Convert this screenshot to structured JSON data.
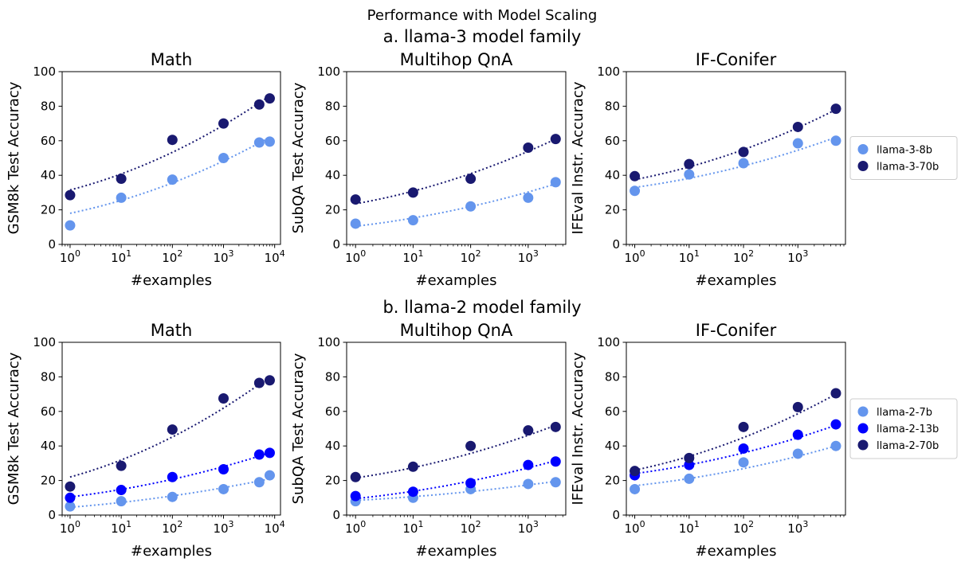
{
  "figure": {
    "suptitle": "Performance with Model Scaling",
    "row_titles": [
      "a. llama-3 model family",
      "b. llama-2 model family"
    ]
  },
  "colors": {
    "light": "#6495ED",
    "medium": "#0000FF",
    "dark": "#191970"
  },
  "chart_data": [
    {
      "type": "scatter",
      "row": 0,
      "col": 0,
      "title": "Math",
      "xlabel": "#examples",
      "ylabel": "GSM8k Test Accuracy",
      "xscale": "log",
      "xlim": [
        0.7,
        13000
      ],
      "ylim": [
        0,
        100
      ],
      "xticks": [
        1,
        10,
        100,
        1000,
        10000
      ],
      "yticks": [
        0,
        20,
        40,
        60,
        80,
        100
      ],
      "legend": "none",
      "series": [
        {
          "name": "llama-3-8b",
          "color_key": "light",
          "x": [
            1,
            10,
            100,
            1000,
            5000,
            8000
          ],
          "y": [
            11,
            27,
            37.5,
            50,
            59,
            59.5
          ],
          "trend": {
            "x": [
              1,
              8000
            ],
            "y": [
              18,
              62
            ]
          }
        },
        {
          "name": "llama-3-70b",
          "color_key": "dark",
          "x": [
            1,
            10,
            100,
            1000,
            5000,
            8000
          ],
          "y": [
            28.5,
            38,
            60.5,
            70,
            81,
            84.5
          ],
          "trend": {
            "x": [
              1,
              8000
            ],
            "y": [
              31.5,
              86
            ]
          }
        }
      ]
    },
    {
      "type": "scatter",
      "row": 0,
      "col": 1,
      "title": "Multihop QnA",
      "xlabel": "#examples",
      "ylabel": "SubQA Test Accuracy",
      "xscale": "log",
      "xlim": [
        0.7,
        4500
      ],
      "ylim": [
        0,
        100
      ],
      "xticks": [
        1,
        10,
        100,
        1000
      ],
      "yticks": [
        0,
        20,
        40,
        60,
        80,
        100
      ],
      "legend": "none",
      "series": [
        {
          "name": "llama-3-8b",
          "color_key": "light",
          "x": [
            1,
            10,
            100,
            1000,
            3000
          ],
          "y": [
            12,
            14,
            22,
            27,
            36
          ],
          "trend": {
            "x": [
              1,
              3000
            ],
            "y": [
              10.5,
              35
            ]
          }
        },
        {
          "name": "llama-3-70b",
          "color_key": "dark",
          "x": [
            1,
            10,
            100,
            1000,
            3000
          ],
          "y": [
            26,
            30,
            38,
            56,
            61
          ],
          "trend": {
            "x": [
              1,
              3000
            ],
            "y": [
              23.5,
              61
            ]
          }
        }
      ]
    },
    {
      "type": "scatter",
      "row": 0,
      "col": 2,
      "title": "IF-Conifer",
      "xlabel": "#examples",
      "ylabel": "IFEval Instr. Accuracy",
      "xscale": "log",
      "xlim": [
        0.7,
        7500
      ],
      "ylim": [
        0,
        100
      ],
      "xticks": [
        1,
        10,
        100,
        1000
      ],
      "yticks": [
        0,
        20,
        40,
        60,
        80,
        100
      ],
      "legend": "outside-right",
      "series": [
        {
          "name": "llama-3-8b",
          "color_key": "light",
          "x": [
            1,
            10,
            100,
            1000,
            5000
          ],
          "y": [
            31,
            40.5,
            47,
            58.5,
            60
          ],
          "trend": {
            "x": [
              1,
              5000
            ],
            "y": [
              33,
              62
            ]
          }
        },
        {
          "name": "llama-3-70b",
          "color_key": "dark",
          "x": [
            1,
            10,
            100,
            1000,
            5000
          ],
          "y": [
            39.5,
            46.5,
            53.5,
            68,
            78.5
          ],
          "trend": {
            "x": [
              1,
              5000
            ],
            "y": [
              37.5,
              78
            ]
          }
        }
      ]
    },
    {
      "type": "scatter",
      "row": 1,
      "col": 0,
      "title": "Math",
      "xlabel": "#examples",
      "ylabel": "GSM8k Test Accuracy",
      "xscale": "log",
      "xlim": [
        0.7,
        13000
      ],
      "ylim": [
        0,
        100
      ],
      "xticks": [
        1,
        10,
        100,
        1000,
        10000
      ],
      "yticks": [
        0,
        20,
        40,
        60,
        80,
        100
      ],
      "legend": "none",
      "series": [
        {
          "name": "llama-2-7b",
          "color_key": "light",
          "x": [
            1,
            10,
            100,
            1000,
            5000,
            8000
          ],
          "y": [
            5,
            8,
            10.5,
            15,
            19,
            23
          ],
          "trend": {
            "x": [
              1,
              8000
            ],
            "y": [
              4.5,
              21
            ]
          }
        },
        {
          "name": "llama-2-13b",
          "color_key": "medium",
          "x": [
            1,
            10,
            100,
            1000,
            5000,
            8000
          ],
          "y": [
            10,
            14.5,
            22,
            26.5,
            35,
            36
          ],
          "trend": {
            "x": [
              1,
              8000
            ],
            "y": [
              10.5,
              36
            ]
          }
        },
        {
          "name": "llama-2-70b",
          "color_key": "dark",
          "x": [
            1,
            10,
            100,
            1000,
            5000,
            8000
          ],
          "y": [
            16.5,
            28.5,
            49.5,
            67.5,
            76.5,
            78
          ],
          "trend": {
            "x": [
              1,
              8000
            ],
            "y": [
              22,
              80
            ]
          }
        }
      ]
    },
    {
      "type": "scatter",
      "row": 1,
      "col": 1,
      "title": "Multihop QnA",
      "xlabel": "#examples",
      "ylabel": "SubQA Test Accuracy",
      "xscale": "log",
      "xlim": [
        0.7,
        4500
      ],
      "ylim": [
        0,
        100
      ],
      "xticks": [
        1,
        10,
        100,
        1000
      ],
      "yticks": [
        0,
        20,
        40,
        60,
        80,
        100
      ],
      "legend": "none",
      "series": [
        {
          "name": "llama-2-7b",
          "color_key": "light",
          "x": [
            1,
            10,
            100,
            1000,
            3000
          ],
          "y": [
            8,
            10,
            15,
            18,
            19
          ],
          "trend": {
            "x": [
              1,
              3000
            ],
            "y": [
              8.5,
              19.5
            ]
          }
        },
        {
          "name": "llama-2-13b",
          "color_key": "medium",
          "x": [
            1,
            10,
            100,
            1000,
            3000
          ],
          "y": [
            11,
            13.5,
            18.5,
            29,
            31
          ],
          "trend": {
            "x": [
              1,
              3000
            ],
            "y": [
              9.5,
              31.5
            ]
          }
        },
        {
          "name": "llama-2-70b",
          "color_key": "dark",
          "x": [
            1,
            10,
            100,
            1000,
            3000
          ],
          "y": [
            22,
            28,
            40,
            49,
            51
          ],
          "trend": {
            "x": [
              1,
              3000
            ],
            "y": [
              21.5,
              52
            ]
          }
        }
      ]
    },
    {
      "type": "scatter",
      "row": 1,
      "col": 2,
      "title": "IF-Conifer",
      "xlabel": "#examples",
      "ylabel": "IFEval Instr. Accuracy",
      "xscale": "log",
      "xlim": [
        0.7,
        7500
      ],
      "ylim": [
        0,
        100
      ],
      "xticks": [
        1,
        10,
        100,
        1000
      ],
      "yticks": [
        0,
        20,
        40,
        60,
        80,
        100
      ],
      "legend": "outside-right",
      "series": [
        {
          "name": "llama-2-7b",
          "color_key": "light",
          "x": [
            1,
            10,
            100,
            1000,
            5000
          ],
          "y": [
            15,
            21,
            30.5,
            35.5,
            40
          ],
          "trend": {
            "x": [
              1,
              5000
            ],
            "y": [
              17,
              40
            ]
          }
        },
        {
          "name": "llama-2-13b",
          "color_key": "medium",
          "x": [
            1,
            10,
            100,
            1000,
            5000
          ],
          "y": [
            23,
            29,
            38.5,
            46.5,
            52.5
          ],
          "trend": {
            "x": [
              1,
              5000
            ],
            "y": [
              24,
              52
            ]
          }
        },
        {
          "name": "llama-2-70b",
          "color_key": "dark",
          "x": [
            1,
            10,
            100,
            1000,
            5000
          ],
          "y": [
            25.5,
            33,
            51,
            62.5,
            70.5
          ],
          "trend": {
            "x": [
              1,
              5000
            ],
            "y": [
              26,
              70
            ]
          }
        }
      ]
    }
  ]
}
